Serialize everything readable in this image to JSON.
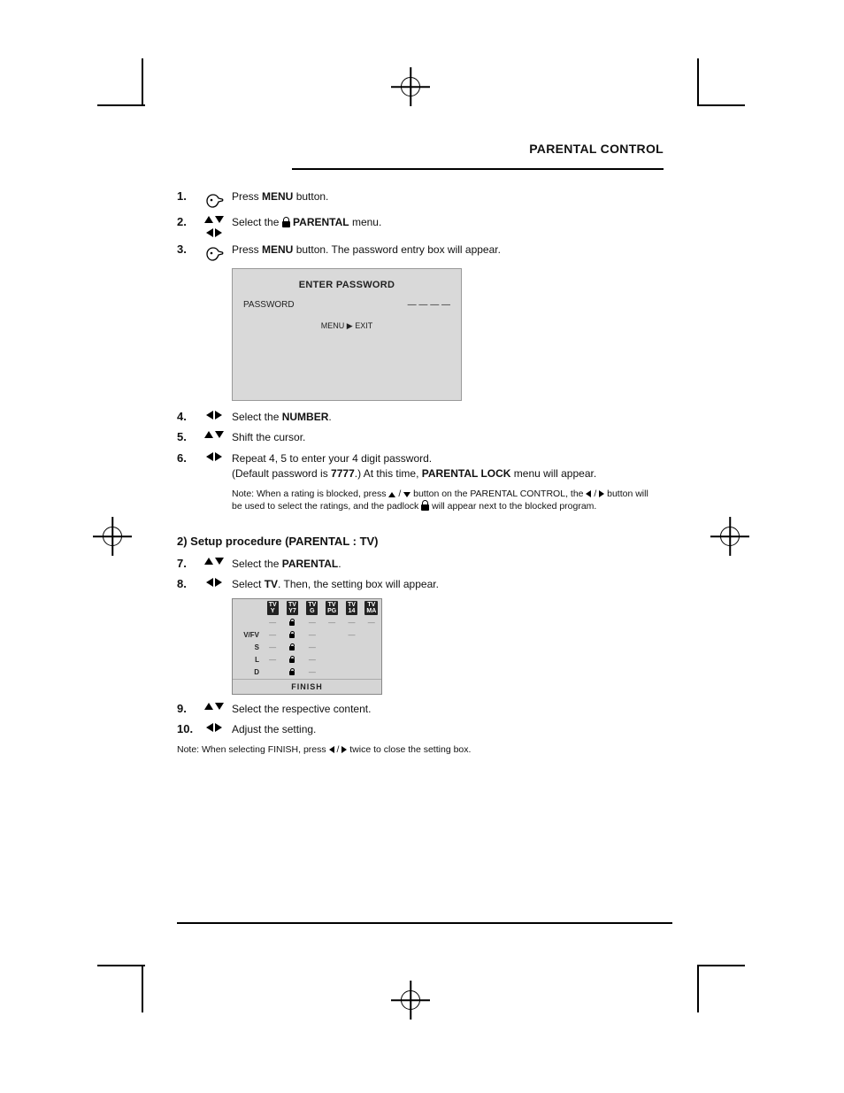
{
  "page": {
    "section_title": "PARENTAL CONTROL",
    "hr_color": "#000000",
    "background": "#ffffff"
  },
  "steps_a": [
    {
      "no": "1.",
      "icon": "hand",
      "text_html": "Press <b>MENU</b> button."
    },
    {
      "no": "2.",
      "icon": "ud+lr",
      "text_html": "Select the <span class='lockslot'></span> <b>PARENTAL</b> menu."
    },
    {
      "no": "3.",
      "icon": "hand",
      "text_html": "Press <b>MENU</b> button. The password entry box will appear."
    }
  ],
  "osd": {
    "title": "ENTER PASSWORD",
    "rows": [
      [
        "PASSWORD",
        "— — — —"
      ]
    ],
    "caption": "MENU ▶ EXIT"
  },
  "steps_b": [
    {
      "no": "4.",
      "icon": "lr",
      "text_html": "Select the <b>NUMBER</b>."
    },
    {
      "no": "5.",
      "icon": "ud",
      "text_html": "Shift the cursor."
    },
    {
      "no": "6.",
      "icon": "lr",
      "text_html": "Repeat 4, 5 to enter your 4 digit password.<br>(Default password is <b>7777</b>.) At this time, <b>PARENTAL LOCK</b> menu will appear."
    }
  ],
  "note1": "Note: When a rating is blocked, press  <span class='tri inline-tri up'></span> / <span class='tri inline-tri down'></span>  button on the PARENTAL CONTROL, the  <span class='tri inline-tri left'></span> / <span class='tri inline-tri right'></span>  button will be used to select the ratings, and the padlock  <span class='lockslot'></span>  will appear next to the blocked program.",
  "subhead1": "2) Setup procedure (PARENTAL : TV)",
  "steps_c": [
    {
      "no": "7.",
      "icon": "ud",
      "text_html": "Select the <b>PARENTAL</b>."
    },
    {
      "no": "8.",
      "icon": "lr",
      "text_html": "Select <b>TV</b>. Then, the setting box will appear."
    }
  ],
  "ptable": {
    "columns": [
      "TV Y",
      "TV Y7",
      "TV G",
      "TV PG",
      "TV 14",
      "TV MA"
    ],
    "col_short": [
      "Y",
      "Y7",
      "G",
      "PG",
      "14",
      "MA"
    ],
    "rows": [
      {
        "label": "",
        "cells": [
          "—",
          "lock",
          "—",
          "—",
          "—",
          "—"
        ]
      },
      {
        "label": "V/FV",
        "cells": [
          "—",
          "lock",
          "—",
          "",
          "—",
          ""
        ]
      },
      {
        "label": "S",
        "cells": [
          "—",
          "lock",
          "—",
          "",
          "",
          ""
        ]
      },
      {
        "label": "L",
        "cells": [
          "—",
          "lock",
          "—",
          "",
          "",
          ""
        ]
      },
      {
        "label": "D",
        "cells": [
          "",
          "lock",
          "—",
          "",
          "",
          ""
        ]
      }
    ],
    "finish": "FINISH"
  },
  "steps_d": [
    {
      "no": "9.",
      "icon": "ud",
      "text_html": "Select the respective content."
    },
    {
      "no": "10.",
      "icon": "lr",
      "text_html": "Adjust the setting."
    }
  ],
  "note2": "Note: When selecting FINISH, press  <span class='tri inline-tri left'></span> / <span class='tri inline-tri right'></span>  twice to close the setting box."
}
